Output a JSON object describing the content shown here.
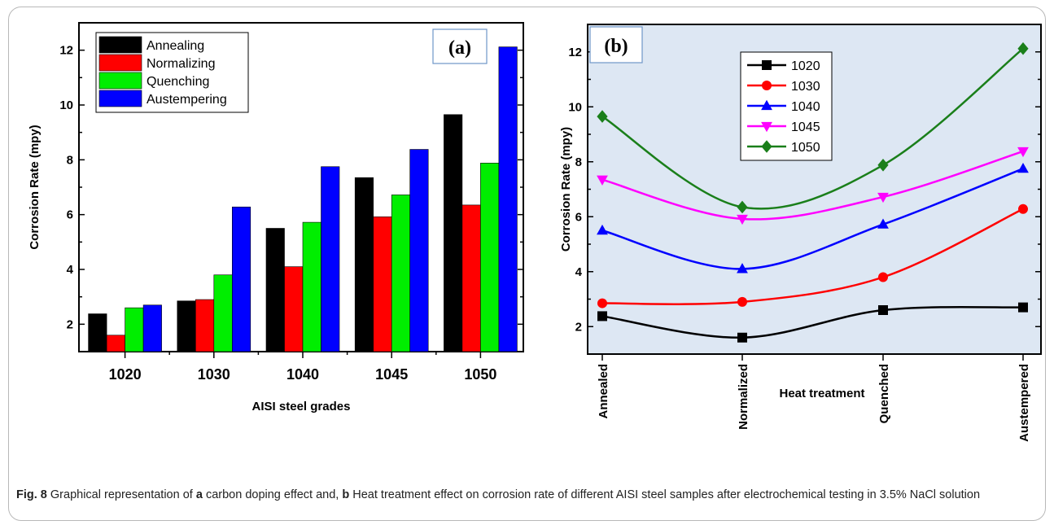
{
  "chart_data": [
    {
      "type": "bar",
      "panel_label": "(a)",
      "categories": [
        "1020",
        "1030",
        "1040",
        "1045",
        "1050"
      ],
      "series": [
        {
          "name": "Annealing",
          "color": "#000000",
          "values": [
            2.38,
            2.85,
            5.5,
            7.35,
            9.65
          ]
        },
        {
          "name": "Normalizing",
          "color": "#ff0000",
          "values": [
            1.6,
            2.9,
            4.1,
            5.92,
            6.35
          ]
        },
        {
          "name": "Quenching",
          "color": "#00ee00",
          "values": [
            2.6,
            3.8,
            5.72,
            6.72,
            7.88
          ]
        },
        {
          "name": "Austempering",
          "color": "#0000ff",
          "values": [
            2.7,
            6.28,
            7.75,
            8.38,
            12.12
          ]
        }
      ],
      "xlabel": "AISI steel grades",
      "ylabel": "Corrosion Rate (mpy)",
      "ylim": [
        1,
        13
      ],
      "yticks": [
        2,
        4,
        6,
        8,
        10,
        12
      ],
      "legend_position": "top-left",
      "grid": false
    },
    {
      "type": "line",
      "panel_label": "(b)",
      "categories": [
        "Annealed",
        "Normalized",
        "Quenched",
        "Austempered"
      ],
      "series": [
        {
          "name": "1020",
          "color": "#000000",
          "marker": "square",
          "values": [
            2.38,
            1.6,
            2.6,
            2.7
          ]
        },
        {
          "name": "1030",
          "color": "#ff0000",
          "marker": "circle",
          "values": [
            2.85,
            2.9,
            3.8,
            6.28
          ]
        },
        {
          "name": "1040",
          "color": "#0000ff",
          "marker": "triangle-up",
          "values": [
            5.5,
            4.1,
            5.72,
            7.75
          ]
        },
        {
          "name": "1045",
          "color": "#ff00ff",
          "marker": "triangle-down",
          "values": [
            7.35,
            5.92,
            6.72,
            8.38
          ]
        },
        {
          "name": "1050",
          "color": "#1a7f1a",
          "marker": "diamond",
          "values": [
            9.65,
            6.35,
            7.88,
            12.12
          ]
        }
      ],
      "xlabel": "Heat treatment",
      "ylabel": "Corrosion Rate (mpy)",
      "ylim": [
        1,
        13
      ],
      "yticks": [
        2,
        4,
        6,
        8,
        10,
        12
      ],
      "legend_position": "top-left",
      "background": "#dde7f3",
      "grid": false
    }
  ],
  "caption": {
    "label": "Fig. 8",
    "t1": "  Graphical representation of ",
    "b1": "a",
    "t2": " carbon doping effect and, ",
    "b2": "b",
    "t3": " Heat treatment effect on corrosion rate of different AISI steel samples after electrochemical testing in 3.5% NaCl solution"
  }
}
